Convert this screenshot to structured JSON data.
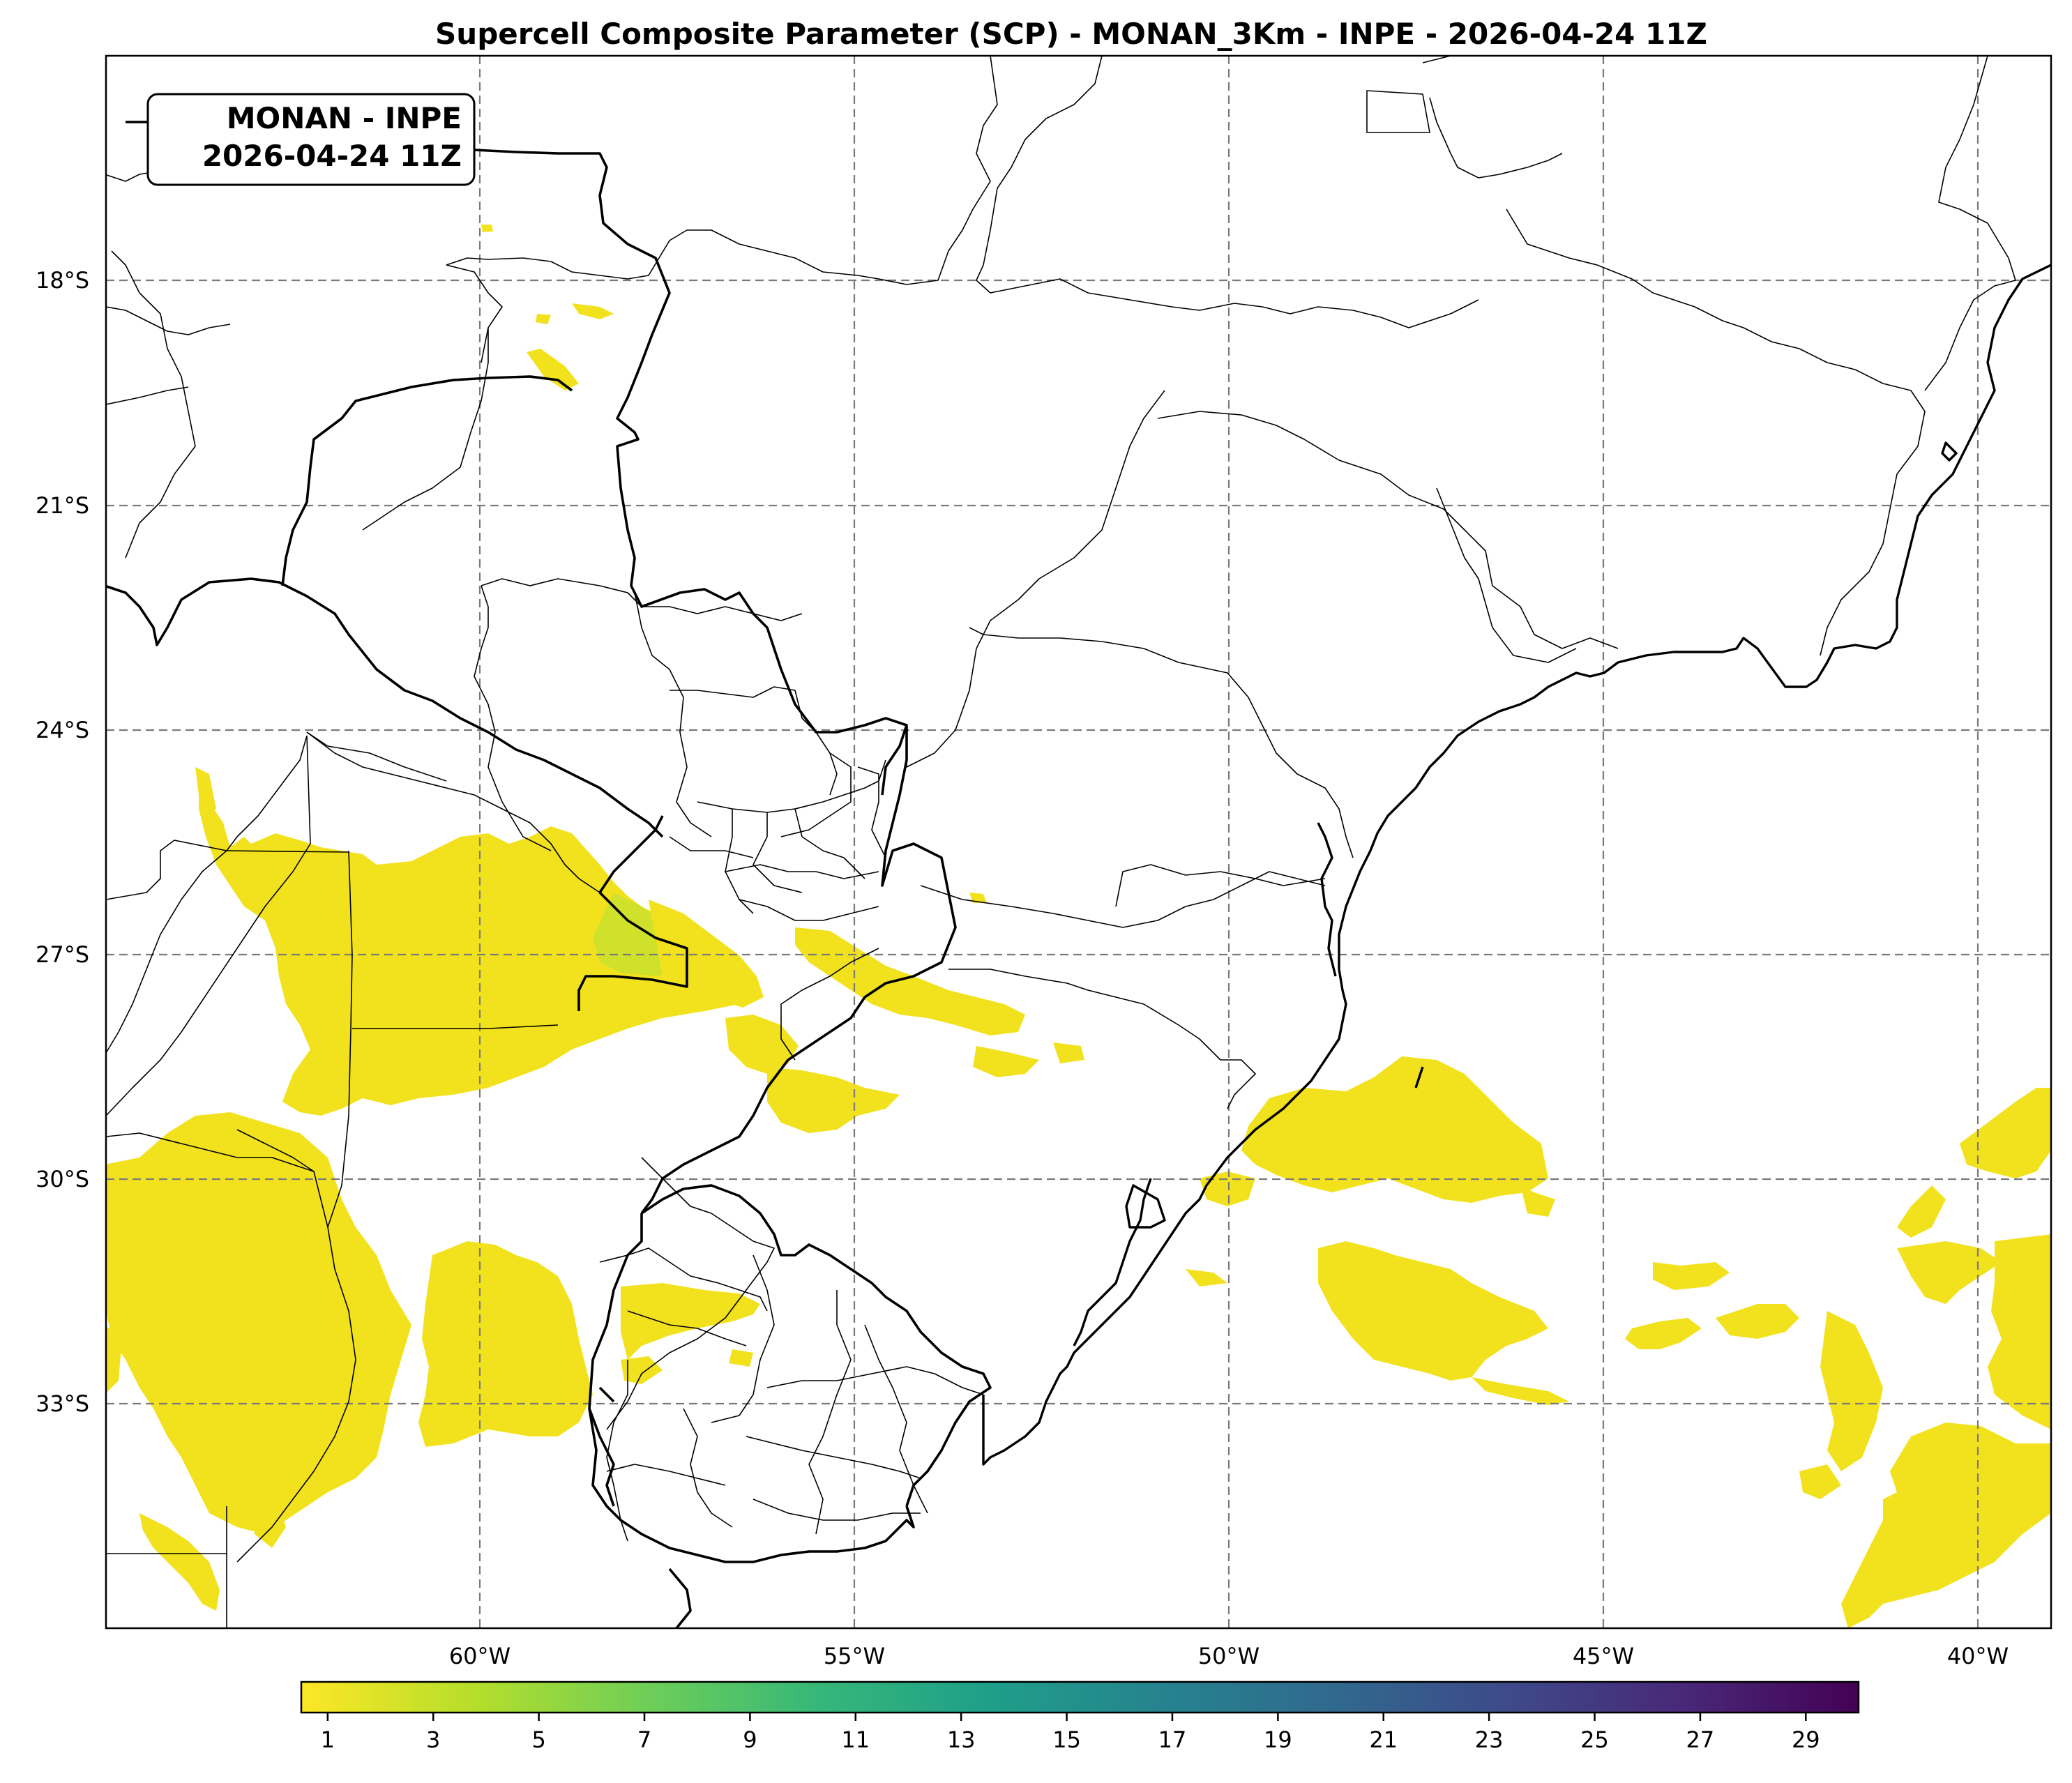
{
  "title": "Supercell Composite Parameter (SCP) - MONAN_3Km - INPE - 2026-04-24 11Z",
  "info_box": {
    "line1": "MONAN - INPE",
    "line2": "2026-04-24 11Z"
  },
  "map": {
    "lon_range": [
      -65,
      -39
    ],
    "lat_range": [
      -36.5,
      -15.5
    ],
    "lon_ticks": [
      {
        "value": -60,
        "label": "60°W"
      },
      {
        "value": -55,
        "label": "55°W"
      },
      {
        "value": -50,
        "label": "50°W"
      },
      {
        "value": -45,
        "label": "45°W"
      },
      {
        "value": -40,
        "label": "40°W"
      }
    ],
    "lat_ticks": [
      {
        "value": -18,
        "label": "18°S"
      },
      {
        "value": -21,
        "label": "21°S"
      },
      {
        "value": -24,
        "label": "24°S"
      },
      {
        "value": -27,
        "label": "27°S"
      },
      {
        "value": -30,
        "label": "30°S"
      },
      {
        "value": -33,
        "label": "33°S"
      }
    ],
    "gridlines": true
  },
  "colorbar": {
    "colormap": "viridis_r",
    "min": 0.5,
    "max": 30,
    "ticks": [
      1,
      3,
      5,
      7,
      9,
      11,
      13,
      15,
      17,
      19,
      21,
      23,
      25,
      27,
      29
    ],
    "tick_labels": [
      "1",
      "3",
      "5",
      "7",
      "9",
      "11",
      "13",
      "15",
      "17",
      "19",
      "21",
      "23",
      "25",
      "27",
      "29"
    ],
    "stops": [
      "#fde725",
      "#b5de2b",
      "#6ece58",
      "#35b779",
      "#1f9e89",
      "#26828e",
      "#31688e",
      "#3e4989",
      "#482878",
      "#440154"
    ]
  },
  "field_color": "#f2e21d"
}
